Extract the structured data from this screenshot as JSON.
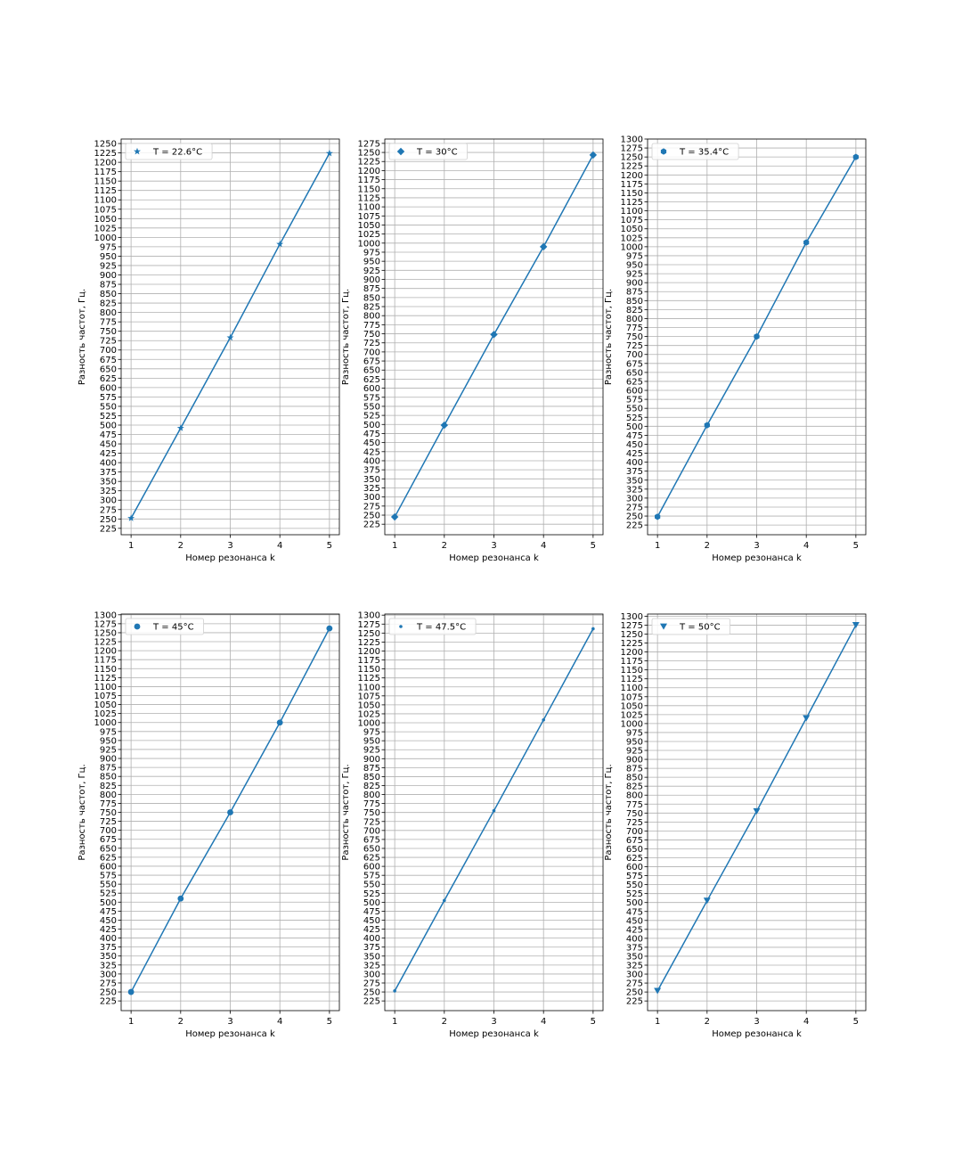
{
  "figure": {
    "background": "#ffffff",
    "line_color": "#1f77b4",
    "grid_color": "#b0b0b0"
  },
  "chart_data": [
    {
      "type": "line",
      "xlabel": "Номер резонанса k",
      "ylabel": "Разность частот, Гц.",
      "xlim": [
        0.8,
        5.2
      ],
      "ylim": [
        208,
        1262
      ],
      "xticks": [
        1,
        2,
        3,
        4,
        5
      ],
      "yticks": [
        225,
        250,
        275,
        300,
        325,
        350,
        375,
        400,
        425,
        450,
        475,
        500,
        525,
        550,
        575,
        600,
        625,
        650,
        675,
        700,
        725,
        750,
        775,
        800,
        825,
        850,
        875,
        900,
        925,
        950,
        975,
        1000,
        1025,
        1050,
        1075,
        1100,
        1125,
        1150,
        1175,
        1200,
        1225,
        1250
      ],
      "grid": true,
      "legend_position": "top-left",
      "series": [
        {
          "name": "T = 22.6°C",
          "marker": "star",
          "x": [
            1,
            2,
            3,
            4,
            5
          ],
          "y": [
            252,
            492,
            733,
            982,
            1224
          ]
        }
      ]
    },
    {
      "type": "line",
      "xlabel": "Номер резонанса k",
      "ylabel": "Разность частот, Гц.",
      "xlim": [
        0.8,
        5.2
      ],
      "ylim": [
        196,
        1287
      ],
      "xticks": [
        1,
        2,
        3,
        4,
        5
      ],
      "yticks": [
        225,
        250,
        275,
        300,
        325,
        350,
        375,
        400,
        425,
        450,
        475,
        500,
        525,
        550,
        575,
        600,
        625,
        650,
        675,
        700,
        725,
        750,
        775,
        800,
        825,
        850,
        875,
        900,
        925,
        950,
        975,
        1000,
        1025,
        1050,
        1075,
        1100,
        1125,
        1150,
        1175,
        1200,
        1225,
        1250,
        1275
      ],
      "grid": true,
      "legend_position": "top-left",
      "series": [
        {
          "name": "T = 30°C",
          "marker": "diamond",
          "x": [
            1,
            2,
            3,
            4,
            5
          ],
          "y": [
            245,
            498,
            748,
            990,
            1243
          ]
        }
      ]
    },
    {
      "type": "line",
      "xlabel": "Номер резонанса k",
      "ylabel": "Разность частот, Гц.",
      "xlim": [
        0.8,
        5.2
      ],
      "ylim": [
        198,
        1300
      ],
      "xticks": [
        1,
        2,
        3,
        4,
        5
      ],
      "yticks": [
        225,
        250,
        275,
        300,
        325,
        350,
        375,
        400,
        425,
        450,
        475,
        500,
        525,
        550,
        575,
        600,
        625,
        650,
        675,
        700,
        725,
        750,
        775,
        800,
        825,
        850,
        875,
        900,
        925,
        950,
        975,
        1000,
        1025,
        1050,
        1075,
        1100,
        1125,
        1150,
        1175,
        1200,
        1225,
        1250,
        1275,
        1300
      ],
      "grid": true,
      "legend_position": "top-left",
      "series": [
        {
          "name": "T = 35.4°C",
          "marker": "hexagon",
          "x": [
            1,
            2,
            3,
            4,
            5
          ],
          "y": [
            248,
            503,
            750,
            1012,
            1250
          ]
        }
      ]
    },
    {
      "type": "line",
      "xlabel": "Номер резонанса k",
      "ylabel": "Разность частот, Гц.",
      "xlim": [
        0.8,
        5.2
      ],
      "ylim": [
        198,
        1302
      ],
      "xticks": [
        1,
        2,
        3,
        4,
        5
      ],
      "yticks": [
        225,
        250,
        275,
        300,
        325,
        350,
        375,
        400,
        425,
        450,
        475,
        500,
        525,
        550,
        575,
        600,
        625,
        650,
        675,
        700,
        725,
        750,
        775,
        800,
        825,
        850,
        875,
        900,
        925,
        950,
        975,
        1000,
        1025,
        1050,
        1075,
        1100,
        1125,
        1150,
        1175,
        1200,
        1225,
        1250,
        1275,
        1300
      ],
      "grid": true,
      "legend_position": "top-left",
      "series": [
        {
          "name": "T = 45°C",
          "marker": "circle",
          "x": [
            1,
            2,
            3,
            4,
            5
          ],
          "y": [
            250,
            510,
            750,
            1000,
            1262
          ]
        }
      ]
    },
    {
      "type": "line",
      "xlabel": "Номер резонанса k",
      "ylabel": "Разность частот, Гц.",
      "xlim": [
        0.8,
        5.2
      ],
      "ylim": [
        198,
        1303
      ],
      "xticks": [
        1,
        2,
        3,
        4,
        5
      ],
      "yticks": [
        225,
        250,
        275,
        300,
        325,
        350,
        375,
        400,
        425,
        450,
        475,
        500,
        525,
        550,
        575,
        600,
        625,
        650,
        675,
        700,
        725,
        750,
        775,
        800,
        825,
        850,
        875,
        900,
        925,
        950,
        975,
        1000,
        1025,
        1050,
        1075,
        1100,
        1125,
        1150,
        1175,
        1200,
        1225,
        1250,
        1275,
        1300
      ],
      "grid": true,
      "legend_position": "top-left",
      "series": [
        {
          "name": "T = 47.5°C",
          "marker": "point",
          "x": [
            1,
            2,
            3,
            4,
            5
          ],
          "y": [
            253,
            505,
            755,
            1008,
            1262
          ]
        }
      ]
    },
    {
      "type": "line",
      "xlabel": "Номер резонанса k",
      "ylabel": "Разность частот, Гц.",
      "xlim": [
        0.8,
        5.2
      ],
      "ylim": [
        198,
        1306
      ],
      "xticks": [
        1,
        2,
        3,
        4,
        5
      ],
      "yticks": [
        225,
        250,
        275,
        300,
        325,
        350,
        375,
        400,
        425,
        450,
        475,
        500,
        525,
        550,
        575,
        600,
        625,
        650,
        675,
        700,
        725,
        750,
        775,
        800,
        825,
        850,
        875,
        900,
        925,
        950,
        975,
        1000,
        1025,
        1050,
        1075,
        1100,
        1125,
        1150,
        1175,
        1200,
        1225,
        1250,
        1275,
        1300
      ],
      "grid": true,
      "legend_position": "top-left",
      "series": [
        {
          "name": "T = 50°C",
          "marker": "triangle-down",
          "x": [
            1,
            2,
            3,
            4,
            5
          ],
          "y": [
            253,
            505,
            755,
            1015,
            1275
          ]
        }
      ]
    }
  ]
}
